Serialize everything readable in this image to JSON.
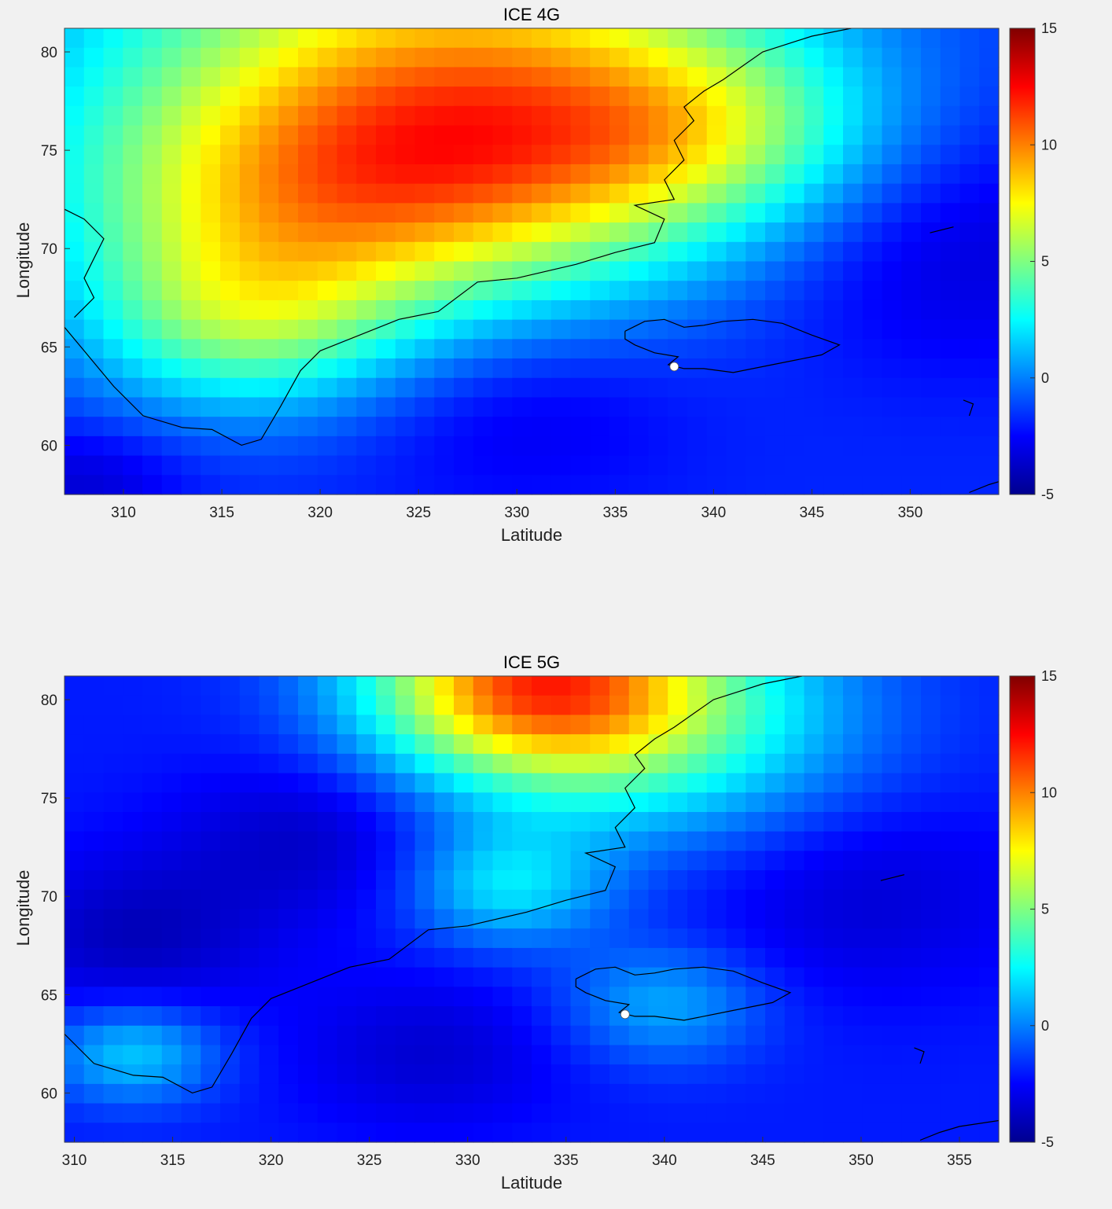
{
  "colormap": [
    "#00008f",
    "#0000ff",
    "#0080ff",
    "#00ffff",
    "#80ff80",
    "#ffff00",
    "#ff8000",
    "#ff0000",
    "#800000"
  ],
  "coast_color": "#000000",
  "marker_color": "#ffffff",
  "chart_data": [
    {
      "type": "heatmap",
      "title": "ICE 4G",
      "xlabel": "Latitude",
      "ylabel": "Longitude",
      "xlim": [
        307,
        354.5
      ],
      "ylim": [
        57.5,
        81.2
      ],
      "xticks": [
        310,
        315,
        320,
        325,
        330,
        335,
        340,
        345,
        350
      ],
      "yticks": [
        60,
        65,
        70,
        75,
        80
      ],
      "colorbar": {
        "ticks": [
          -5,
          0,
          5,
          10,
          15
        ],
        "clim": [
          -5,
          15
        ],
        "placement": "right"
      },
      "marker": {
        "x": 338,
        "y": 64
      },
      "field_centers": [
        {
          "x": 325,
          "y": 81,
          "v": 5.2,
          "s": 11
        },
        {
          "x": 318,
          "y": 72,
          "v": 4.3,
          "s": 7
        },
        {
          "x": 316,
          "y": 66,
          "v": 2.4,
          "s": 4.5
        },
        {
          "x": 330,
          "y": 75,
          "v": 4.5,
          "s": 7
        },
        {
          "x": 340,
          "y": 76,
          "v": 2.0,
          "s": 5
        },
        {
          "x": 330,
          "y": 62,
          "v": -3.2,
          "s": 5
        },
        {
          "x": 352,
          "y": 70,
          "v": -3.5,
          "s": 6
        },
        {
          "x": 308,
          "y": 58,
          "v": -3.5,
          "s": 3
        }
      ],
      "base_value": -1.8,
      "grid": false
    },
    {
      "type": "heatmap",
      "title": "ICE 5G",
      "xlabel": "Latitude",
      "ylabel": "Longitude",
      "xlim": [
        309.5,
        357
      ],
      "ylim": [
        57.5,
        81.2
      ],
      "xticks": [
        310,
        315,
        320,
        325,
        330,
        335,
        340,
        345,
        350,
        355
      ],
      "yticks": [
        60,
        65,
        70,
        75,
        80
      ],
      "colorbar": {
        "ticks": [
          -5,
          0,
          5,
          10,
          15
        ],
        "clim": [
          -5,
          15
        ],
        "placement": "right"
      },
      "marker": {
        "x": 338,
        "y": 64
      },
      "field_centers": [
        {
          "x": 333,
          "y": 81,
          "v": 9.0,
          "s": 5
        },
        {
          "x": 340,
          "y": 79,
          "v": 3.0,
          "s": 6
        },
        {
          "x": 332,
          "y": 70.5,
          "v": 1.8,
          "s": 3
        },
        {
          "x": 340,
          "y": 64.5,
          "v": 0.8,
          "s": 3
        },
        {
          "x": 313,
          "y": 62,
          "v": 1.5,
          "s": 2.5
        },
        {
          "x": 313,
          "y": 68,
          "v": -4.0,
          "s": 4
        },
        {
          "x": 322,
          "y": 73,
          "v": -3.8,
          "s": 4
        },
        {
          "x": 328,
          "y": 62,
          "v": -3.5,
          "s": 4
        },
        {
          "x": 350,
          "y": 70,
          "v": -3.5,
          "s": 5
        }
      ],
      "base_value": -2.0,
      "grid": false
    }
  ]
}
